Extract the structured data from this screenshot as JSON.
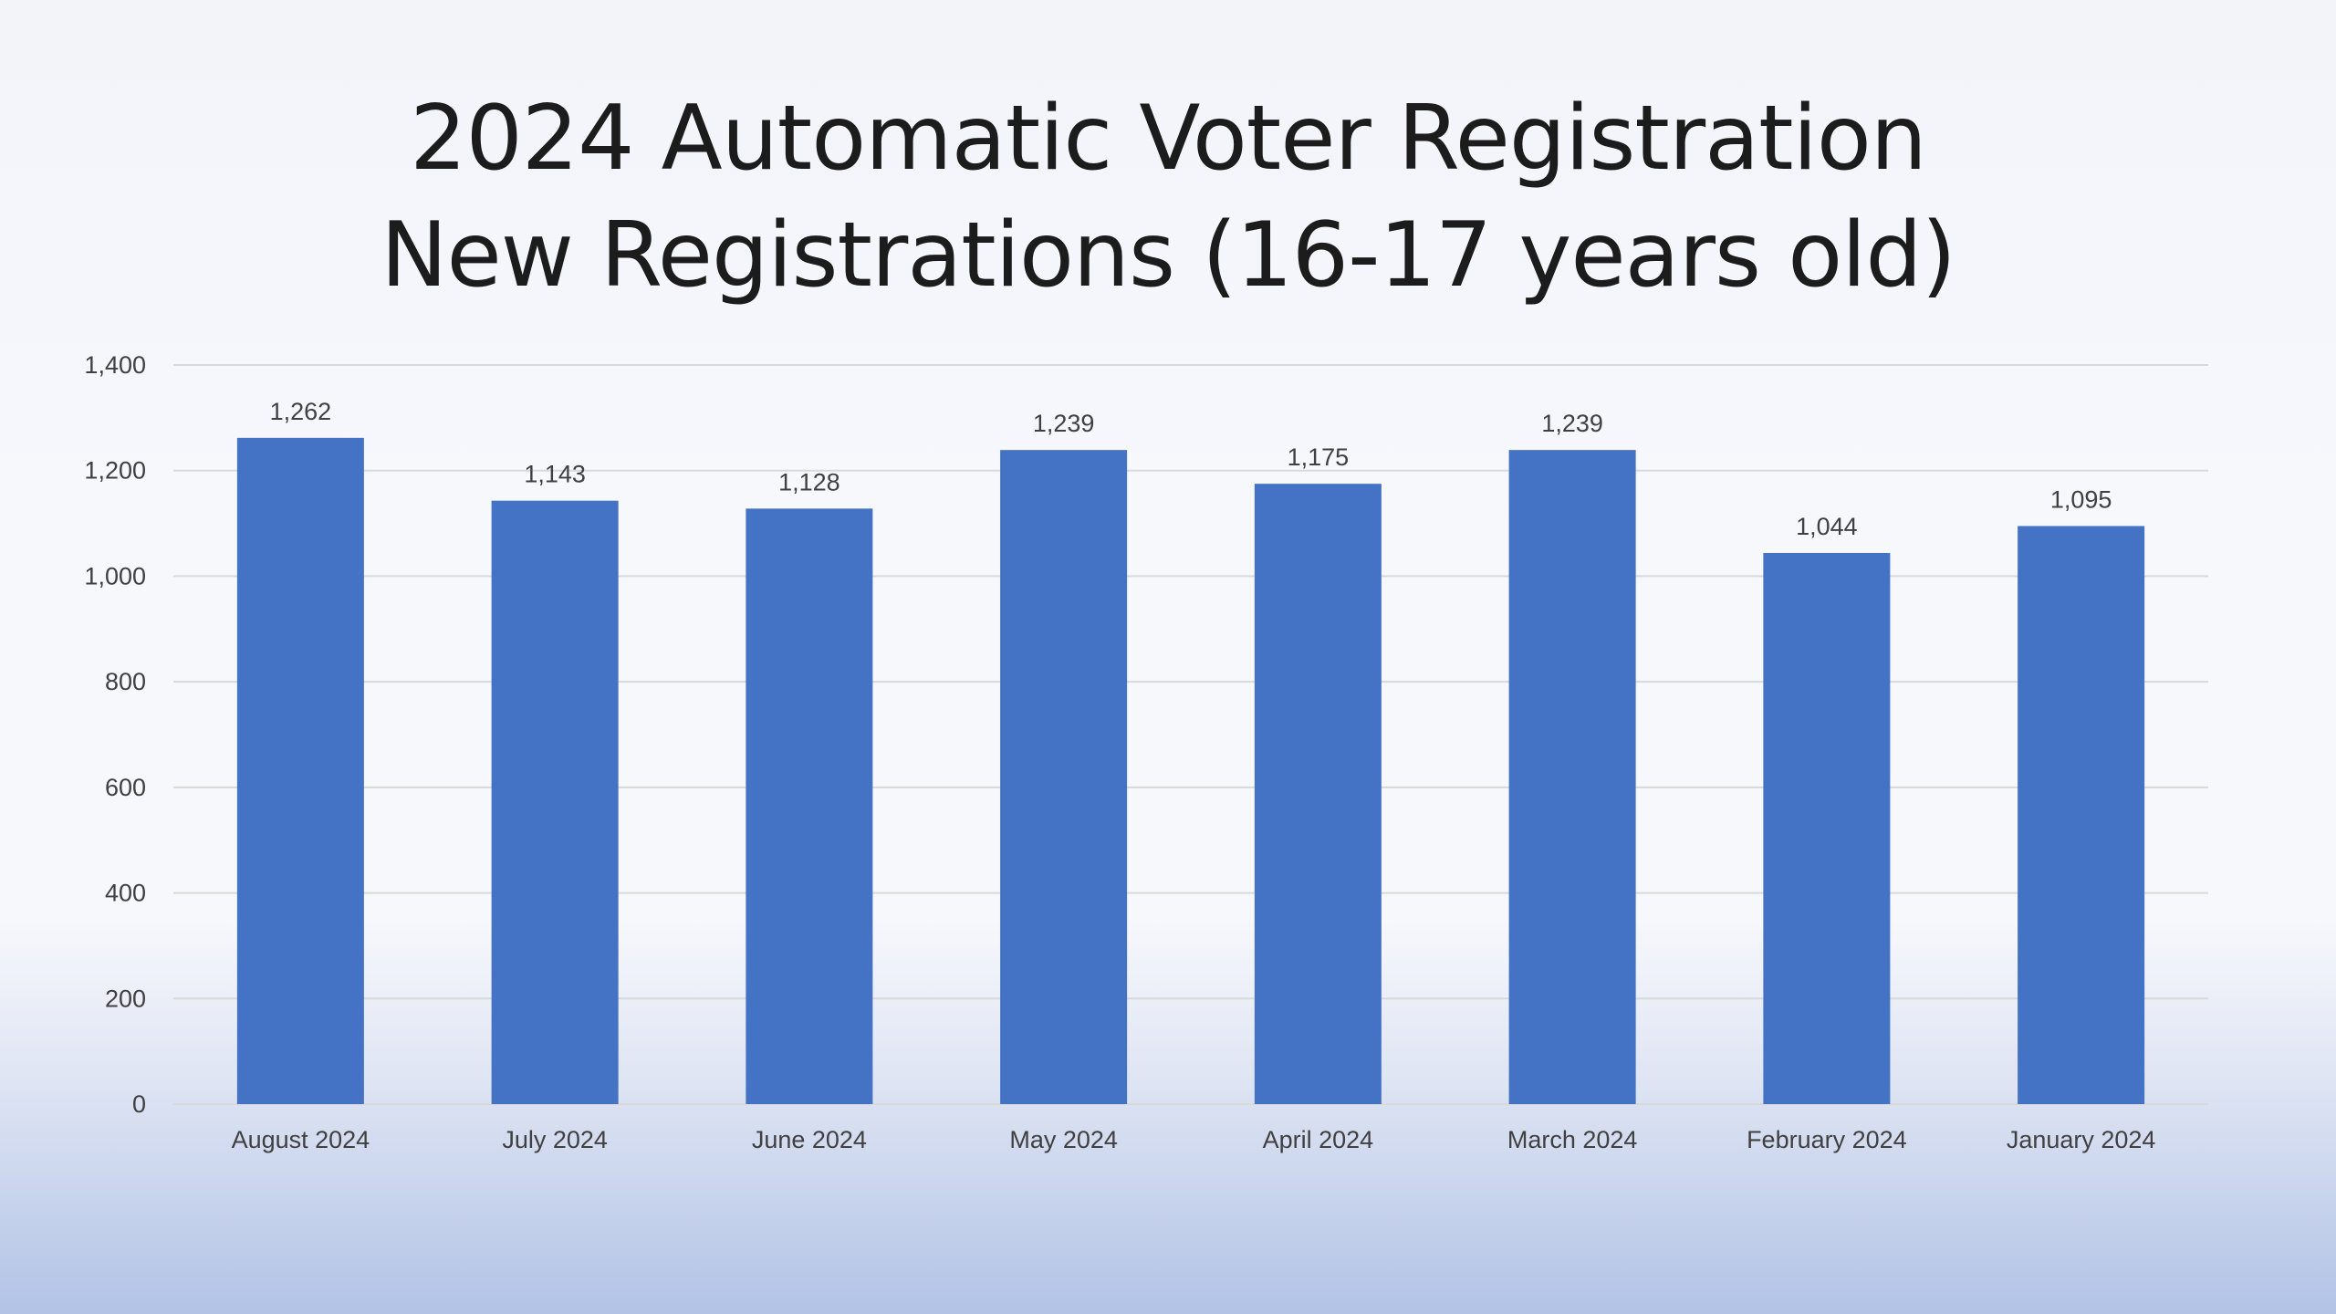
{
  "slide": {
    "title_line1": "2024 Automatic Voter Registration",
    "title_line2": "New Registrations (16-17 years old)"
  },
  "colors": {
    "bar": "#4472c4",
    "gridline": "#d9d9d9",
    "text": "#404040"
  },
  "chart_data": {
    "type": "bar",
    "title": "2024 Automatic Voter Registration New Registrations (16-17 years old)",
    "xlabel": "",
    "ylabel": "",
    "ylim": [
      0,
      1400
    ],
    "yticks": [
      0,
      200,
      400,
      600,
      800,
      1000,
      1200,
      1400
    ],
    "ytick_labels": [
      "0",
      "200",
      "400",
      "600",
      "800",
      "1,000",
      "1,200",
      "1,400"
    ],
    "grid": true,
    "legend": "none",
    "categories": [
      "August 2024",
      "July 2024",
      "June 2024",
      "May 2024",
      "April 2024",
      "March 2024",
      "February 2024",
      "January 2024"
    ],
    "values": [
      1262,
      1143,
      1128,
      1239,
      1175,
      1239,
      1044,
      1095
    ],
    "data_labels": [
      "1,262",
      "1,143",
      "1,128",
      "1,239",
      "1,175",
      "1,239",
      "1,044",
      "1,095"
    ]
  }
}
